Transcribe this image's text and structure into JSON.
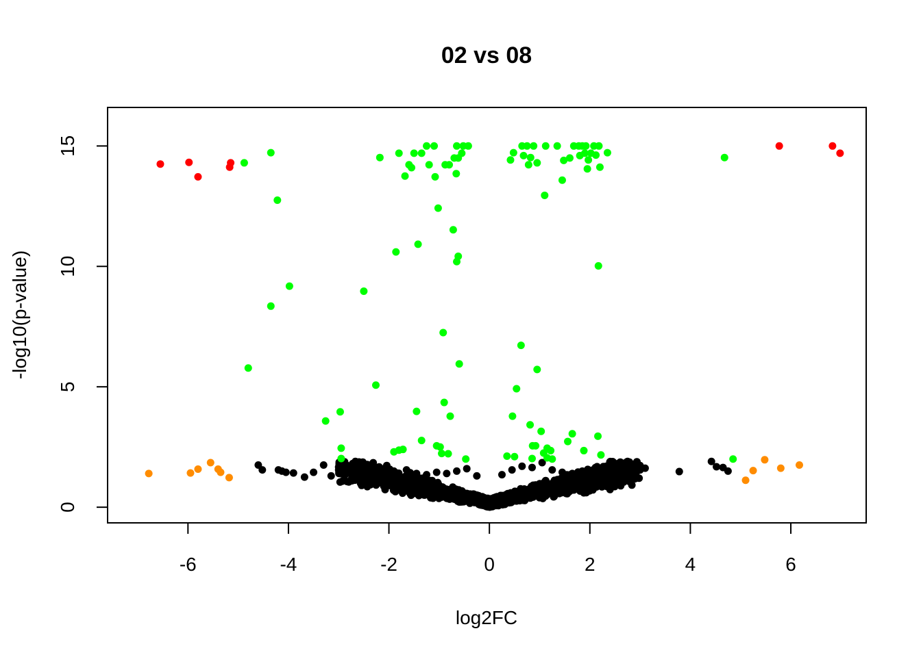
{
  "chart_data": {
    "type": "scatter",
    "title": "02 vs 08",
    "xlabel": "log2FC",
    "ylabel": "-log10(p-value)",
    "xlim": [
      -7.6,
      7.5
    ],
    "ylim": [
      -0.65,
      16.6
    ],
    "x_ticks": [
      -6,
      -4,
      -2,
      0,
      2,
      4,
      6
    ],
    "y_ticks": [
      0,
      5,
      10,
      15
    ],
    "colors": {
      "significant_large_fc": "#ff0000",
      "significant": "#00ff00",
      "large_fc": "#ff8c00",
      "not_significant": "#000000"
    },
    "red_points": [
      [
        -6.55,
        14.25
      ],
      [
        -5.98,
        14.32
      ],
      [
        -5.8,
        13.72
      ],
      [
        -5.15,
        14.3
      ],
      [
        -5.17,
        14.12
      ],
      [
        5.77,
        15.0
      ],
      [
        6.83,
        15.0
      ],
      [
        6.98,
        14.7
      ]
    ],
    "green_points": [
      [
        -4.88,
        14.3
      ],
      [
        -4.35,
        14.72
      ],
      [
        -4.22,
        12.75
      ],
      [
        -3.98,
        9.18
      ],
      [
        -4.35,
        8.35
      ],
      [
        -4.8,
        5.78
      ],
      [
        -2.18,
        14.52
      ],
      [
        -1.8,
        14.7
      ],
      [
        -1.68,
        13.75
      ],
      [
        -1.6,
        14.22
      ],
      [
        -1.55,
        14.1
      ],
      [
        -1.5,
        14.7
      ],
      [
        -1.35,
        14.7
      ],
      [
        -1.25,
        15.0
      ],
      [
        -1.2,
        14.22
      ],
      [
        -1.1,
        15.0
      ],
      [
        -1.08,
        13.72
      ],
      [
        -0.88,
        14.22
      ],
      [
        -0.8,
        14.22
      ],
      [
        -0.7,
        14.5
      ],
      [
        -0.66,
        13.85
      ],
      [
        -0.65,
        15.0
      ],
      [
        -0.62,
        14.5
      ],
      [
        -0.55,
        14.7
      ],
      [
        -0.52,
        15.0
      ],
      [
        -0.42,
        15.0
      ],
      [
        -1.02,
        12.42
      ],
      [
        -0.72,
        11.52
      ],
      [
        -0.62,
        10.42
      ],
      [
        -0.65,
        10.2
      ],
      [
        -1.42,
        10.92
      ],
      [
        -1.86,
        10.6
      ],
      [
        -2.5,
        8.97
      ],
      [
        -0.92,
        7.25
      ],
      [
        -0.6,
        5.95
      ],
      [
        -2.26,
        5.07
      ],
      [
        -0.9,
        4.35
      ],
      [
        -0.78,
        3.78
      ],
      [
        -1.45,
        3.98
      ],
      [
        -2.97,
        3.96
      ],
      [
        -3.26,
        3.58
      ],
      [
        -1.35,
        2.77
      ],
      [
        -1.05,
        2.55
      ],
      [
        -0.98,
        2.5
      ],
      [
        -0.95,
        2.23
      ],
      [
        -0.82,
        2.22
      ],
      [
        -1.72,
        2.4
      ],
      [
        -1.8,
        2.37
      ],
      [
        -1.9,
        2.3
      ],
      [
        -2.95,
        2.45
      ],
      [
        -2.95,
        2.02
      ],
      [
        -0.47,
        2.0
      ],
      [
        0.42,
        14.42
      ],
      [
        0.48,
        14.72
      ],
      [
        0.65,
        15.0
      ],
      [
        0.68,
        14.6
      ],
      [
        0.75,
        15.0
      ],
      [
        0.78,
        14.22
      ],
      [
        0.82,
        14.52
      ],
      [
        0.88,
        15.0
      ],
      [
        0.95,
        14.3
      ],
      [
        1.12,
        15.0
      ],
      [
        1.35,
        15.0
      ],
      [
        1.48,
        14.4
      ],
      [
        1.6,
        14.5
      ],
      [
        1.68,
        15.0
      ],
      [
        1.78,
        15.0
      ],
      [
        1.8,
        14.6
      ],
      [
        1.85,
        15.0
      ],
      [
        1.9,
        14.7
      ],
      [
        1.92,
        15.0
      ],
      [
        1.95,
        14.05
      ],
      [
        1.97,
        14.42
      ],
      [
        2.02,
        14.7
      ],
      [
        2.08,
        15.0
      ],
      [
        2.12,
        14.62
      ],
      [
        2.18,
        15.0
      ],
      [
        2.2,
        14.12
      ],
      [
        2.35,
        14.72
      ],
      [
        1.1,
        12.95
      ],
      [
        1.45,
        13.58
      ],
      [
        2.17,
        10.02
      ],
      [
        4.68,
        14.52
      ],
      [
        0.63,
        6.72
      ],
      [
        0.95,
        5.72
      ],
      [
        0.54,
        4.92
      ],
      [
        0.46,
        3.78
      ],
      [
        0.81,
        3.42
      ],
      [
        1.03,
        3.15
      ],
      [
        1.65,
        3.05
      ],
      [
        1.56,
        2.73
      ],
      [
        2.16,
        2.95
      ],
      [
        0.35,
        2.12
      ],
      [
        0.5,
        2.1
      ],
      [
        0.86,
        2.55
      ],
      [
        0.92,
        2.55
      ],
      [
        1.08,
        2.25
      ],
      [
        1.15,
        2.45
      ],
      [
        1.22,
        2.35
      ],
      [
        1.88,
        2.35
      ],
      [
        2.22,
        2.17
      ],
      [
        1.15,
        2.05
      ],
      [
        0.85,
        2.02
      ],
      [
        1.25,
        2.0
      ],
      [
        4.85,
        2.0
      ]
    ],
    "orange_points": [
      [
        -6.78,
        1.4
      ],
      [
        -5.95,
        1.42
      ],
      [
        -5.8,
        1.58
      ],
      [
        -5.55,
        1.85
      ],
      [
        -5.4,
        1.58
      ],
      [
        -5.35,
        1.45
      ],
      [
        -5.18,
        1.23
      ],
      [
        5.1,
        1.12
      ],
      [
        5.25,
        1.52
      ],
      [
        5.48,
        1.97
      ],
      [
        5.8,
        1.62
      ],
      [
        6.17,
        1.75
      ]
    ],
    "black_points": [
      [
        -4.6,
        1.75
      ],
      [
        -4.52,
        1.55
      ],
      [
        -4.2,
        1.55
      ],
      [
        -4.13,
        1.5
      ],
      [
        -4.05,
        1.45
      ],
      [
        -3.9,
        1.42
      ],
      [
        -3.68,
        1.25
      ],
      [
        -3.5,
        1.45
      ],
      [
        -3.3,
        1.75
      ],
      [
        -3.15,
        1.3
      ],
      [
        -3.0,
        1.55
      ],
      [
        -2.9,
        1.35
      ],
      [
        -2.7,
        1.62
      ],
      [
        -2.6,
        1.5
      ],
      [
        -2.45,
        1.6
      ],
      [
        -2.25,
        1.55
      ],
      [
        -2.05,
        1.5
      ],
      [
        -1.85,
        1.42
      ],
      [
        -1.65,
        1.55
      ],
      [
        -1.45,
        1.4
      ],
      [
        -1.25,
        1.35
      ],
      [
        -1.05,
        1.45
      ],
      [
        -0.85,
        1.4
      ],
      [
        -0.65,
        1.5
      ],
      [
        -0.45,
        1.6
      ],
      [
        -0.25,
        1.3
      ],
      [
        0.25,
        1.35
      ],
      [
        0.45,
        1.55
      ],
      [
        0.65,
        1.7
      ],
      [
        0.85,
        1.65
      ],
      [
        1.05,
        1.85
      ],
      [
        1.25,
        1.55
      ],
      [
        1.45,
        1.45
      ],
      [
        1.65,
        1.4
      ],
      [
        1.85,
        1.5
      ],
      [
        2.05,
        1.35
      ],
      [
        2.25,
        1.45
      ],
      [
        2.45,
        1.35
      ],
      [
        2.65,
        1.2
      ],
      [
        2.75,
        1.9
      ],
      [
        2.85,
        1.45
      ],
      [
        3.0,
        1.55
      ],
      [
        3.1,
        1.62
      ],
      [
        3.78,
        1.48
      ],
      [
        4.42,
        1.9
      ],
      [
        4.52,
        1.68
      ],
      [
        4.65,
        1.65
      ],
      [
        4.75,
        1.5
      ]
    ]
  }
}
